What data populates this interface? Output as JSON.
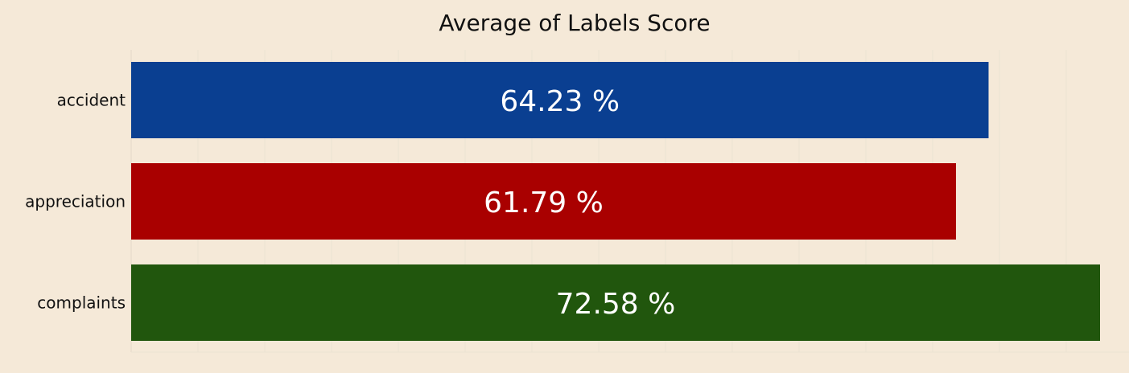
{
  "chart_data": {
    "type": "bar",
    "orientation": "horizontal",
    "title": "Average of Labels Score",
    "categories": [
      "accident",
      "appreciation",
      "complaints"
    ],
    "values": [
      64.23,
      61.79,
      72.58
    ],
    "value_labels": [
      "64.23 %",
      "61.79 %",
      "72.58 %"
    ],
    "colors": [
      "#0a3f91",
      "#a90000",
      "#21560d"
    ],
    "xlim": [
      0,
      72.58
    ],
    "grid": true,
    "gridlines_vertical": 14,
    "xlabel": "",
    "ylabel": ""
  }
}
